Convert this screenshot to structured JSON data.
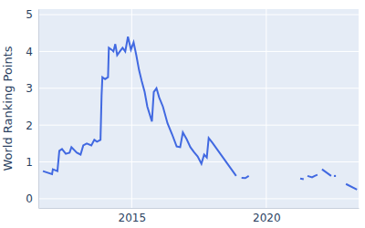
{
  "chart_data": {
    "type": "line",
    "y_label": "World Ranking Points",
    "x": [
      2011.7,
      2012.04,
      2012.07,
      2012.24,
      2012.31,
      2012.41,
      2012.55,
      2012.69,
      2012.76,
      2012.96,
      2013.1,
      2013.2,
      2013.33,
      2013.5,
      2013.61,
      2013.71,
      2013.84,
      2013.88,
      2013.91,
      2014.01,
      2014.12,
      2014.15,
      2014.25,
      2014.32,
      2014.39,
      2014.46,
      2014.56,
      2014.66,
      2014.76,
      2014.86,
      2014.97,
      2015.07,
      2015.17,
      2015.27,
      2015.37,
      2015.48,
      2015.58,
      2015.75,
      2015.82,
      2015.92,
      2016.02,
      2016.16,
      2016.33,
      2016.5,
      2016.67,
      2016.8,
      2016.9,
      2017.04,
      2017.18,
      2017.31,
      2017.45,
      2017.59,
      2017.69,
      2017.79,
      2017.86,
      2018.0,
      2018.88,
      2018.98,
      2019.08,
      2019.22,
      2019.35,
      2020.3,
      2021.26,
      2021.39,
      2021.46,
      2021.53,
      2021.7,
      2021.8,
      2021.9,
      2021.98,
      2022.07,
      2022.41,
      2022.48,
      2022.55,
      2022.75,
      2022.96,
      2023.37
    ],
    "series": [
      {
        "name": "World Ranking Points",
        "color": "#4169e1",
        "values": [
          0.75,
          0.67,
          0.8,
          0.75,
          1.3,
          1.35,
          1.22,
          1.25,
          1.4,
          1.25,
          1.2,
          1.45,
          1.5,
          1.45,
          1.6,
          1.55,
          1.6,
          2.8,
          3.3,
          3.25,
          3.3,
          4.1,
          4.05,
          4.0,
          4.2,
          3.9,
          4.0,
          4.1,
          4.0,
          4.4,
          4.05,
          4.25,
          3.9,
          3.5,
          3.2,
          2.9,
          2.5,
          2.1,
          2.9,
          3.0,
          2.75,
          2.5,
          2.05,
          1.75,
          1.42,
          1.4,
          1.8,
          1.62,
          1.4,
          1.27,
          1.15,
          0.95,
          1.2,
          1.12,
          1.65,
          1.52,
          0.62,
          null,
          0.57,
          0.56,
          0.62,
          null,
          0.55,
          0.53,
          null,
          0.62,
          0.58,
          0.62,
          0.65,
          null,
          0.8,
          0.62,
          null,
          0.62,
          null,
          0.4,
          0.25
        ]
      }
    ],
    "xlim": [
      2011.53,
      2023.43
    ],
    "ylim": [
      -0.25,
      5.15
    ],
    "xticks": [
      2015,
      2020
    ],
    "yticks": [
      0,
      1,
      2,
      3,
      4,
      5
    ],
    "grid": true
  }
}
